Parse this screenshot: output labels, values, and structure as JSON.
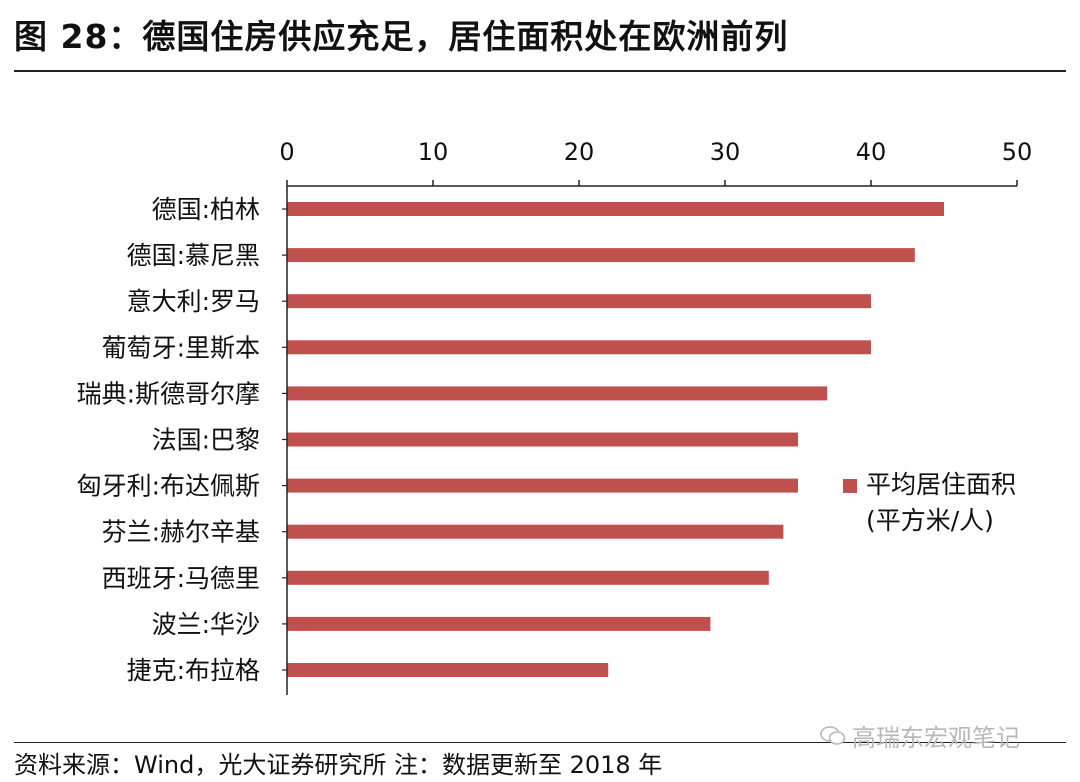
{
  "title": "图 28：德国住房供应充足，居住面积处在欧洲前列",
  "source": "资料来源：Wind，光大证券研究所 注：数据更新至 2018 年",
  "watermark": "高瑞东宏观笔记",
  "colors": {
    "bar": "#c0504d",
    "axis": "#222222"
  },
  "chart_data": {
    "type": "bar",
    "orientation": "horizontal",
    "categories": [
      "德国:柏林",
      "德国:慕尼黑",
      "意大利:罗马",
      "葡萄牙:里斯本",
      "瑞典:斯德哥尔摩",
      "法国:巴黎",
      "匈牙利:布达佩斯",
      "芬兰:赫尔辛基",
      "西班牙:马德里",
      "波兰:华沙",
      "捷克:布拉格"
    ],
    "series": [
      {
        "name": "平均居住面积(平方米/人)",
        "values": [
          45,
          43,
          40,
          40,
          37,
          35,
          35,
          34,
          33,
          29,
          22
        ]
      }
    ],
    "legend_lines": [
      "平均居住面积",
      "(平方米/人)"
    ],
    "xlim": [
      0,
      50
    ],
    "xticks": [
      0,
      10,
      20,
      30,
      40,
      50
    ],
    "xaxis_position": "top",
    "legend_position": "right",
    "grid": false
  }
}
